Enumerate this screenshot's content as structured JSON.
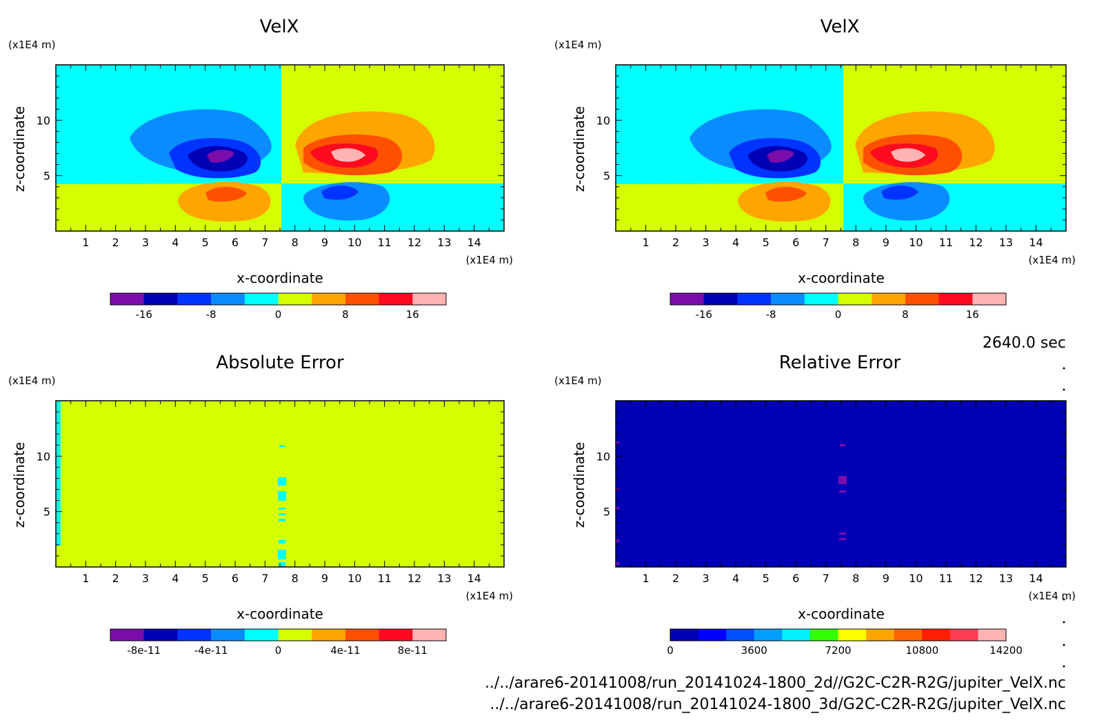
{
  "time_label": "2640.0 sec",
  "file_paths": [
    "../../arare6-20141008/run_20141024-1800_2d//G2C-C2R-R2G/jupiter_VelX.nc",
    "../../arare6-20141008/run_20141024-1800_3d/G2C-C2R-R2G/jupiter_VelX.nc"
  ],
  "chart_data": [
    {
      "type": "heatmap",
      "title": "VelX",
      "xlabel": "x-coordinate",
      "ylabel": "z-coordinate",
      "x_unit": "(x1E4 m)",
      "y_unit": "(x1E4 m)",
      "xlim": [
        0,
        15
      ],
      "ylim": [
        0,
        15
      ],
      "x_ticks": [
        "1",
        "2",
        "3",
        "4",
        "5",
        "6",
        "7",
        "8",
        "9",
        "10",
        "11",
        "12",
        "13",
        "14"
      ],
      "y_ticks": [
        "5",
        "10"
      ],
      "colorbar": {
        "colors": [
          "#7a0dab",
          "#0000b4",
          "#0033ff",
          "#0a8cff",
          "#00ffff",
          "#d5ff00",
          "#ffa500",
          "#ff5000",
          "#ff0a1e",
          "#ffb4b4"
        ],
        "ticks": [
          "-16",
          "-8",
          "0",
          "8",
          "16"
        ]
      }
    },
    {
      "type": "heatmap",
      "title": "VelX",
      "xlabel": "x-coordinate",
      "ylabel": "z-coordinate",
      "x_unit": "(x1E4 m)",
      "y_unit": "(x1E4 m)",
      "xlim": [
        0,
        15
      ],
      "ylim": [
        0,
        15
      ],
      "x_ticks": [
        "1",
        "2",
        "3",
        "4",
        "5",
        "6",
        "7",
        "8",
        "9",
        "10",
        "11",
        "12",
        "13",
        "14"
      ],
      "y_ticks": [
        "5",
        "10"
      ],
      "colorbar": {
        "colors": [
          "#7a0dab",
          "#0000b4",
          "#0033ff",
          "#0a8cff",
          "#00ffff",
          "#d5ff00",
          "#ffa500",
          "#ff5000",
          "#ff0a1e",
          "#ffb4b4"
        ],
        "ticks": [
          "-16",
          "-8",
          "0",
          "8",
          "16"
        ]
      }
    },
    {
      "type": "heatmap",
      "title": "Absolute Error",
      "xlabel": "x-coordinate",
      "ylabel": "z-coordinate",
      "x_unit": "(x1E4 m)",
      "y_unit": "(x1E4 m)",
      "xlim": [
        0,
        15
      ],
      "ylim": [
        0,
        15
      ],
      "x_ticks": [
        "1",
        "2",
        "3",
        "4",
        "5",
        "6",
        "7",
        "8",
        "9",
        "10",
        "11",
        "12",
        "13",
        "14"
      ],
      "y_ticks": [
        "5",
        "10"
      ],
      "colorbar": {
        "colors": [
          "#7a0dab",
          "#0000b4",
          "#0033ff",
          "#0a8cff",
          "#00ffff",
          "#d5ff00",
          "#ffa500",
          "#ff5000",
          "#ff0a1e",
          "#ffb4b4"
        ],
        "ticks": [
          "-8e-11",
          "-4e-11",
          "0",
          "4e-11",
          "8e-11"
        ]
      }
    },
    {
      "type": "heatmap",
      "title": "Relative Error",
      "xlabel": "x-coordinate",
      "ylabel": "z-coordinate",
      "x_unit": "(x1E4 m)",
      "y_unit": "(x1E4 m)",
      "xlim": [
        0,
        15
      ],
      "ylim": [
        0,
        15
      ],
      "x_ticks": [
        "1",
        "2",
        "3",
        "4",
        "5",
        "6",
        "7",
        "8",
        "9",
        "10",
        "11",
        "12",
        "13",
        "14"
      ],
      "y_ticks": [
        "5",
        "10"
      ],
      "colorbar": {
        "colors": [
          "#0000b4",
          "#0000ff",
          "#0050ff",
          "#00a0ff",
          "#00f0ff",
          "#32ff00",
          "#ffff00",
          "#ffa500",
          "#ff6400",
          "#ff1e00",
          "#ff3c50",
          "#ffb4b4"
        ],
        "ticks": [
          "0",
          "3600",
          "7200",
          "10800",
          "14200"
        ]
      }
    }
  ]
}
